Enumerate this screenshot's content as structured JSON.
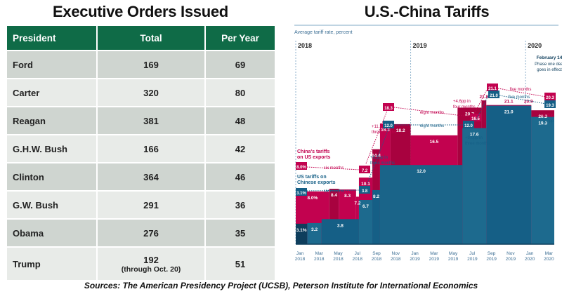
{
  "left_panel": {
    "title": "Executive Orders Issued",
    "headers": [
      "President",
      "Total",
      "Per Year"
    ],
    "rows": [
      {
        "president": "Ford",
        "total": "169",
        "per_year": "69"
      },
      {
        "president": "Carter",
        "total": "320",
        "per_year": "80"
      },
      {
        "president": "Reagan",
        "total": "381",
        "per_year": "48"
      },
      {
        "president": "G.H.W. Bush",
        "total": "166",
        "per_year": "42"
      },
      {
        "president": "Clinton",
        "total": "364",
        "per_year": "46"
      },
      {
        "president": "G.W. Bush",
        "total": "291",
        "per_year": "36"
      },
      {
        "president": "Obama",
        "total": "276",
        "per_year": "35"
      },
      {
        "president": "Trump",
        "total": "192",
        "total_note": "(through Oct. 20)",
        "per_year": "51"
      }
    ],
    "header_color": "#0f6b47"
  },
  "right_panel": {
    "title": "U.S.-China Tariffs"
  },
  "sources": "Sources: The American Presidency Project (UCSB), Peterson Institute for International Economics",
  "chart_data": [
    {
      "type": "table",
      "title": "Executive Orders Issued",
      "columns": [
        "President",
        "Total",
        "Per Year"
      ],
      "rows": [
        [
          "Ford",
          169,
          69
        ],
        [
          "Carter",
          320,
          80
        ],
        [
          "Reagan",
          381,
          48
        ],
        [
          "G.H.W. Bush",
          166,
          42
        ],
        [
          "Clinton",
          364,
          46
        ],
        [
          "G.W. Bush",
          291,
          36
        ],
        [
          "Obama",
          276,
          35
        ],
        [
          "Trump",
          192,
          51
        ]
      ],
      "annotations": [
        "Trump total through Oct. 20"
      ]
    },
    {
      "type": "area",
      "title": "U.S.-China Tariffs",
      "subtitle": "Average tariff rate, percent",
      "year_labels": [
        "2018",
        "2019",
        "2020"
      ],
      "x_ticks": [
        "Jan 2018",
        "Mar 2018",
        "May 2018",
        "Jul 2018",
        "Sep 2018",
        "Nov 2018",
        "Jan 2019",
        "Mar 2019",
        "May 2019",
        "Jul 2019",
        "Sep 2019",
        "Nov 2019",
        "Jan 2020",
        "Mar 2020"
      ],
      "x_range_months": [
        0,
        27
      ],
      "ylim": [
        0,
        25
      ],
      "series": [
        {
          "name": "China's tariffs on US exports",
          "color": "#c2024f",
          "steps": [
            {
              "start": 0,
              "end": 3.5,
              "value": 8.0,
              "label": "8.0%"
            },
            {
              "start": 3.5,
              "end": 4.5,
              "value": 8.4,
              "label": "8.4"
            },
            {
              "start": 4.5,
              "end": 6.3,
              "value": 8.3,
              "label": "8.3"
            },
            {
              "start": 6.3,
              "end": 6.6,
              "value": 7.2,
              "label": "7.2"
            },
            {
              "start": 6.6,
              "end": 8.0,
              "value": 10.1,
              "label": "10.1"
            },
            {
              "start": 8.0,
              "end": 8.8,
              "value": 14.4,
              "label": "14.4"
            },
            {
              "start": 8.8,
              "end": 9.9,
              "value": 18.3,
              "label": "18.3"
            },
            {
              "start": 9.9,
              "end": 12.0,
              "value": 18.2,
              "label": "18.2"
            },
            {
              "start": 12.0,
              "end": 16.9,
              "value": 16.5,
              "label": "16.5"
            },
            {
              "start": 16.9,
              "end": 19.4,
              "value": 20.7,
              "label": "20.7"
            },
            {
              "start": 19.4,
              "end": 19.9,
              "value": 21.8,
              "label": "21.8"
            },
            {
              "start": 19.9,
              "end": 24.6,
              "value": 21.1,
              "label": "21.1"
            },
            {
              "start": 24.6,
              "end": 27.0,
              "value": 20.3,
              "label": "20.3"
            }
          ]
        },
        {
          "name": "US tariffs on Chinese exports",
          "color": "#155f86",
          "steps": [
            {
              "start": 0,
              "end": 1.2,
              "value": 3.1,
              "label": "3.1%"
            },
            {
              "start": 1.2,
              "end": 2.7,
              "value": 3.2,
              "label": "3.2"
            },
            {
              "start": 2.7,
              "end": 6.6,
              "value": 3.8,
              "label": "3.8"
            },
            {
              "start": 6.6,
              "end": 8.0,
              "value": 6.7,
              "label": "6.7"
            },
            {
              "start": 8.0,
              "end": 8.8,
              "value": 8.2,
              "label": "8.2"
            },
            {
              "start": 8.8,
              "end": 17.4,
              "value": 12.0,
              "label": "12.0"
            },
            {
              "start": 17.4,
              "end": 19.9,
              "value": 17.6,
              "label": "17.6"
            },
            {
              "start": 19.9,
              "end": 24.6,
              "value": 21.0,
              "label": "21.0"
            },
            {
              "start": 24.6,
              "end": 27.0,
              "value": 19.3,
              "label": "19.3"
            }
          ]
        }
      ],
      "annotations": {
        "legend_china": "China's tariffs on US exports",
        "legend_us": "US tariffs on Chinese exports",
        "china_path": [
          {
            "value": "8.0%",
            "note": ""
          },
          {
            "value": "7.2",
            "note": "six months"
          },
          {
            "value": "18.3",
            "note": "+11.1pp in three months"
          },
          {
            "value": "16.5",
            "note": "eight months"
          },
          {
            "value": "21.1",
            "note": "+4.6pp in four months"
          },
          {
            "value": "20.3",
            "note": "five months"
          }
        ],
        "us_path": [
          {
            "value": "3.1%",
            "note": ""
          },
          {
            "value": "3.8",
            "note": "six months"
          },
          {
            "value": "12.0",
            "note": "+8.2pp in three months"
          },
          {
            "value": "12.0",
            "note": "eight months"
          },
          {
            "value": "21.0",
            "note": "+9.0pp in three months"
          },
          {
            "value": "19.3",
            "note": "five months"
          }
        ],
        "phase_one": [
          "February 14",
          "Phase one deal",
          "goes in effect"
        ],
        "changes": [
          "−0.8pp",
          "−1.7pp"
        ],
        "top_labels": [
          "21.8",
          "21.1",
          "20.9"
        ]
      }
    }
  ]
}
